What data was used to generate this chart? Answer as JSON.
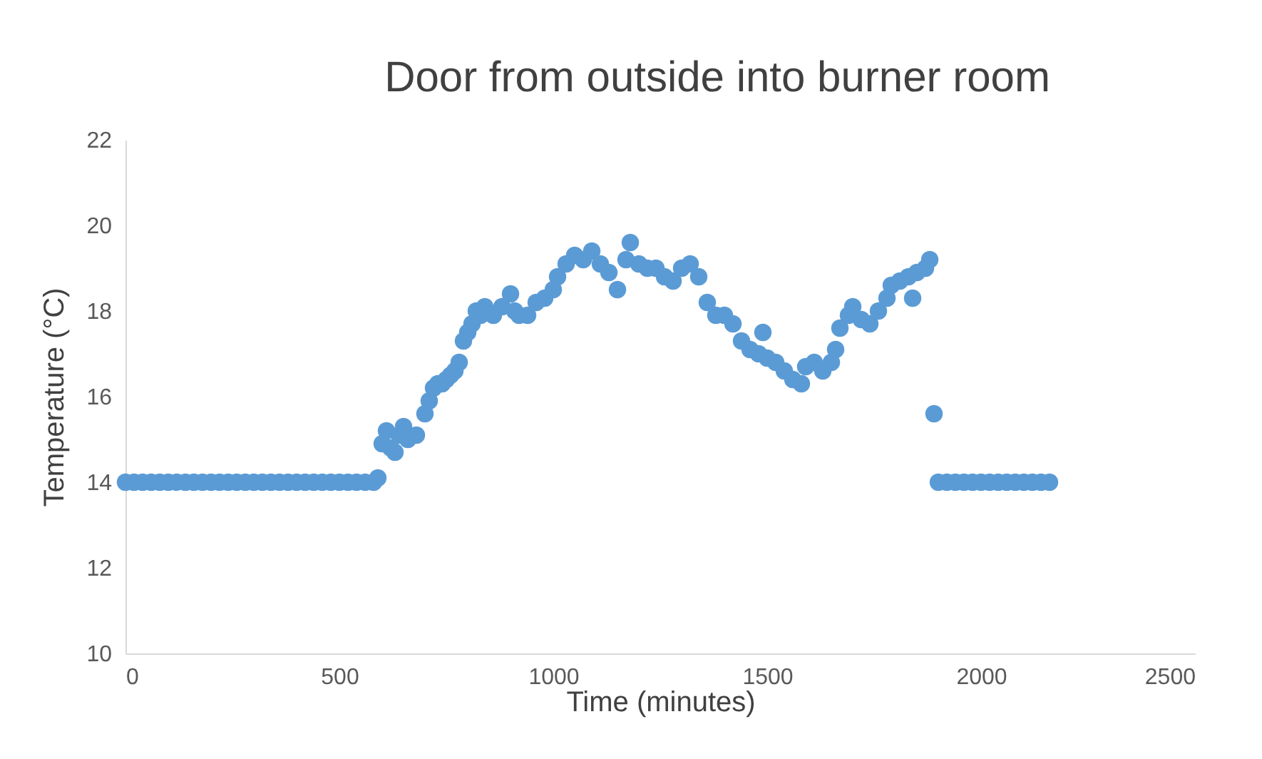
{
  "chart_data": {
    "type": "scatter",
    "title": "Door from outside into burner room",
    "xlabel": "Time (minutes)",
    "ylabel": "Temperature (°C)",
    "xlim": [
      0,
      2500
    ],
    "xticks": [
      0,
      500,
      1000,
      1500,
      2000,
      2500
    ],
    "ylim": [
      10,
      22
    ],
    "yticks": [
      10,
      12,
      14,
      16,
      18,
      20,
      22
    ],
    "grid": false,
    "marker": "circle",
    "series": [
      {
        "color": "#5b9bd5",
        "x": [
          0,
          20,
          40,
          60,
          80,
          100,
          120,
          140,
          160,
          180,
          200,
          220,
          240,
          260,
          280,
          300,
          320,
          340,
          360,
          380,
          400,
          420,
          440,
          460,
          480,
          500,
          520,
          540,
          560,
          580,
          590,
          600,
          610,
          620,
          630,
          640,
          650,
          660,
          680,
          700,
          710,
          720,
          730,
          740,
          750,
          760,
          770,
          780,
          790,
          800,
          810,
          820,
          830,
          840,
          860,
          880,
          900,
          910,
          920,
          940,
          960,
          980,
          1000,
          1010,
          1030,
          1050,
          1070,
          1090,
          1110,
          1130,
          1150,
          1170,
          1180,
          1200,
          1220,
          1240,
          1260,
          1280,
          1300,
          1320,
          1340,
          1360,
          1380,
          1400,
          1420,
          1440,
          1460,
          1480,
          1490,
          1500,
          1520,
          1540,
          1560,
          1580,
          1590,
          1610,
          1630,
          1650,
          1660,
          1670,
          1690,
          1700,
          1720,
          1740,
          1760,
          1780,
          1790,
          1810,
          1830,
          1840,
          1850,
          1870,
          1880,
          1890,
          1900,
          1920,
          1940,
          1960,
          1980,
          2000,
          2020,
          2040,
          2060,
          2080,
          2100,
          2120,
          2140,
          2160
        ],
        "values": [
          14,
          14,
          14,
          14,
          14,
          14,
          14,
          14,
          14,
          14,
          14,
          14,
          14,
          14,
          14,
          14,
          14,
          14,
          14,
          14,
          14,
          14,
          14,
          14,
          14,
          14,
          14,
          14,
          14,
          14,
          14.1,
          14.9,
          15.2,
          14.8,
          14.7,
          15.1,
          15.3,
          15.0,
          15.1,
          15.6,
          15.9,
          16.2,
          16.3,
          16.3,
          16.4,
          16.5,
          16.6,
          16.8,
          17.3,
          17.5,
          17.7,
          18.0,
          17.9,
          18.1,
          17.9,
          18.1,
          18.4,
          18.0,
          17.9,
          17.9,
          18.2,
          18.3,
          18.5,
          18.8,
          19.1,
          19.3,
          19.2,
          19.4,
          19.1,
          18.9,
          18.5,
          19.2,
          19.6,
          19.1,
          19.0,
          19.0,
          18.8,
          18.7,
          19.0,
          19.1,
          18.8,
          18.2,
          17.9,
          17.9,
          17.7,
          17.3,
          17.1,
          17.0,
          17.5,
          16.9,
          16.8,
          16.6,
          16.4,
          16.3,
          16.7,
          16.8,
          16.6,
          16.8,
          17.1,
          17.6,
          17.9,
          18.1,
          17.8,
          17.7,
          18.0,
          18.3,
          18.6,
          18.7,
          18.8,
          18.3,
          18.9,
          19.0,
          19.2,
          15.6,
          14,
          14,
          14,
          14,
          14,
          14,
          14,
          14,
          14,
          14,
          14,
          14,
          14,
          14
        ]
      }
    ]
  }
}
